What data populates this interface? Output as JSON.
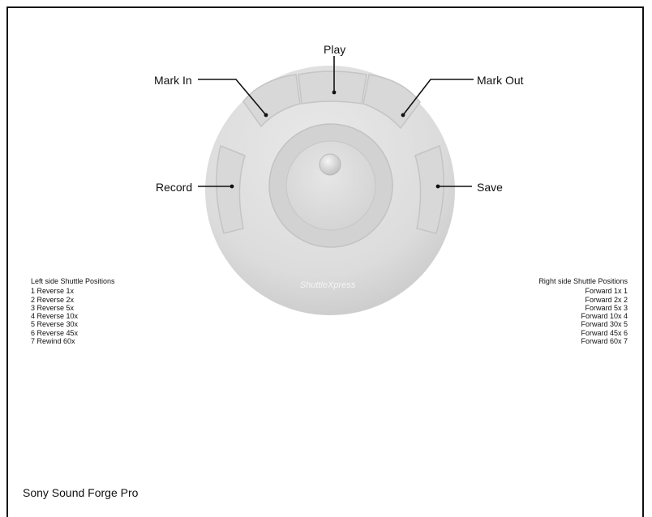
{
  "device": {
    "brand_label": "ShuttleXpress",
    "buttons": [
      {
        "id": "mark-in",
        "label": "Mark In"
      },
      {
        "id": "play",
        "label": "Play"
      },
      {
        "id": "mark-out",
        "label": "Mark Out"
      },
      {
        "id": "record",
        "label": "Record"
      },
      {
        "id": "save",
        "label": "Save"
      }
    ]
  },
  "left_shuttle": {
    "title": "Left side Shuttle Positions",
    "items": [
      "1 Reverse 1x",
      "2 Reverse 2x",
      "3 Reverse 5x",
      "4 Reverse 10x",
      "5 Reverse 30x",
      "6 Reverse 45x",
      "7 Rewind 60x"
    ]
  },
  "right_shuttle": {
    "title": "Right side Shuttle Positions",
    "items": [
      "Forward 1x 1",
      "Forward 2x 2",
      "Forward 5x 3",
      "Forward 10x 4",
      "Forward 30x 5",
      "Forward 45x 6",
      "Forward 60x 7"
    ]
  },
  "footer": {
    "app_name": "Sony Sound Forge Pro"
  },
  "colors": {
    "device_body": "#dcdcdc",
    "device_ring": "#cfcfcf",
    "leader_line": "#111111"
  }
}
